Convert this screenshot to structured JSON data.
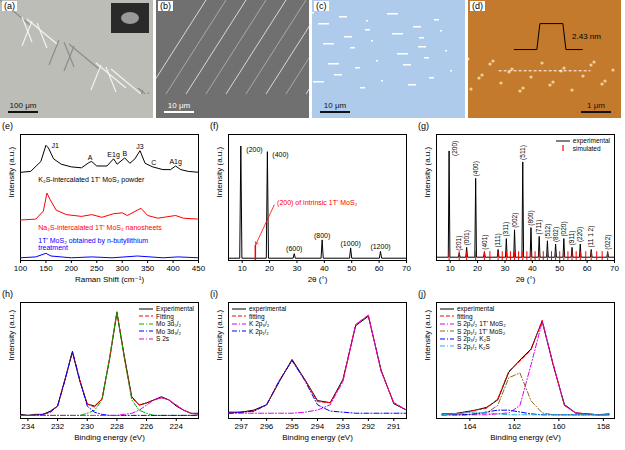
{
  "images": [
    {
      "panel": "(a)",
      "scale_bar": "100 μm"
    },
    {
      "panel": "(b)",
      "scale_bar": "10 μm"
    },
    {
      "panel": "(c)",
      "scale_bar": "10 μm"
    },
    {
      "panel": "(d)",
      "scale_bar": "1 μm",
      "profile_label": "2.43 nm"
    }
  ],
  "chart_data": [
    {
      "panel": "(e)",
      "type": "line",
      "xlabel": "Raman Shift (cm⁻¹)",
      "ylabel": "Intensity (a.u.)",
      "xlim": [
        100,
        450
      ],
      "xticks": [
        100,
        150,
        200,
        250,
        300,
        350,
        400,
        450
      ],
      "ylim": [
        0,
        14
      ],
      "tick_labels": "x",
      "series": [
        {
          "name": "K₂S-intercalated 1T' MoS₂ powder",
          "color": "#000000",
          "x": [
            100,
            120,
            140,
            150,
            155,
            165,
            180,
            200,
            220,
            235,
            240,
            250,
            270,
            283,
            290,
            305,
            315,
            325,
            335,
            345,
            360,
            380,
            395,
            405,
            415,
            430,
            450
          ],
          "values": [
            9.8,
            9.9,
            11.0,
            12.8,
            12.5,
            11.3,
            10.7,
            10.4,
            10.3,
            10.9,
            11.0,
            10.5,
            10.5,
            11.3,
            10.7,
            11.4,
            10.8,
            11.3,
            12.2,
            10.8,
            10.4,
            10.1,
            10.1,
            10.5,
            10.1,
            9.9,
            9.8
          ]
        },
        {
          "name": "Na₂S-intercalated 1T' MoS₂ nanosheets",
          "color": "#ff0000",
          "x": [
            100,
            130,
            145,
            152,
            158,
            170,
            190,
            220,
            240,
            260,
            283,
            300,
            310,
            330,
            337,
            350,
            370,
            405,
            420,
            450
          ],
          "values": [
            4.5,
            4.6,
            5.5,
            7.5,
            6.8,
            5.6,
            5.1,
            4.9,
            5.1,
            4.8,
            5.2,
            5.3,
            5.0,
            5.6,
            5.8,
            5.0,
            4.7,
            5.0,
            4.7,
            4.6
          ]
        },
        {
          "name": "1T' MoS₂ obtained by n-butyllithium treatment",
          "color": "#0000ff",
          "x": [
            100,
            130,
            150,
            160,
            200,
            240,
            280,
            330,
            380,
            410,
            450
          ],
          "values": [
            0.3,
            0.4,
            0.8,
            0.5,
            0.3,
            0.4,
            0.3,
            0.5,
            0.3,
            0.4,
            0.3
          ]
        }
      ],
      "annotations": [
        {
          "text": "J1",
          "x": 168,
          "y": 12.5
        },
        {
          "text": "A",
          "x": 237,
          "y": 11.2
        },
        {
          "text": "E1g",
          "x": 283,
          "y": 11.5
        },
        {
          "text": "B",
          "x": 305,
          "y": 11.6
        },
        {
          "text": "J3",
          "x": 335,
          "y": 12.4
        },
        {
          "text": "C",
          "x": 362,
          "y": 10.6
        },
        {
          "text": "A1g",
          "x": 405,
          "y": 10.7
        }
      ]
    },
    {
      "panel": "(f)",
      "type": "line",
      "xlabel": "2θ (°)",
      "ylabel": "Intensity (a.u.)",
      "xlim": [
        5,
        70
      ],
      "xticks": [
        10,
        20,
        30,
        40,
        50,
        60,
        70
      ],
      "ylim": [
        0,
        1.1
      ],
      "tick_labels": "x",
      "series": [
        {
          "color": "#000000",
          "x": [
            5,
            9.1,
            9.5,
            9.9,
            18.8,
            19.2,
            19.6,
            28.6,
            29.0,
            29.4,
            38.8,
            39.2,
            39.6,
            49.2,
            49.6,
            50.0,
            60.1,
            60.5,
            60.9,
            70
          ],
          "values": [
            0.02,
            0.02,
            1.0,
            0.02,
            0.02,
            0.95,
            0.02,
            0.02,
            0.06,
            0.02,
            0.02,
            0.18,
            0.02,
            0.02,
            0.11,
            0.02,
            0.02,
            0.08,
            0.02,
            0.02
          ]
        }
      ],
      "annotations": [
        {
          "text": "(200)",
          "x": 14.5,
          "y": 0.95
        },
        {
          "text": "(400)",
          "x": 24,
          "y": 0.9
        },
        {
          "text": "(600)",
          "x": 29,
          "y": 0.08
        },
        {
          "text": "(800)",
          "x": 39.2,
          "y": 0.2
        },
        {
          "text": "(1000)",
          "x": 49.6,
          "y": 0.13
        },
        {
          "text": "(1200)",
          "x": 60.5,
          "y": 0.1
        },
        {
          "text": "(200) of intrinsic 1T' MoS₂",
          "x": 22,
          "y": 0.5,
          "color": "#ff0000",
          "target_x": 14.8
        }
      ]
    },
    {
      "panel": "(g)",
      "type": "line",
      "xlabel": "2θ (°)",
      "ylabel": "Intensity (a.u.)",
      "xlim": [
        5,
        70
      ],
      "xticks": [
        10,
        20,
        30,
        40,
        50,
        60,
        70
      ],
      "ylim": [
        0,
        1.15
      ],
      "tick_labels": "x",
      "legend": "top-right",
      "series": [
        {
          "name": "experimental",
          "color": "#000000",
          "x": [
            5,
            9.3,
            9.6,
            9.9,
            13.0,
            13.3,
            13.6,
            15.7,
            16,
            16.3,
            19.0,
            19.3,
            19.6,
            22.2,
            22.5,
            22.8,
            27.2,
            27.5,
            27.8,
            30.2,
            30.5,
            30.8,
            33.2,
            33.5,
            33.8,
            36.2,
            36.5,
            36.8,
            39.2,
            39.5,
            39.8,
            42.2,
            42.5,
            42.8,
            45.2,
            45.5,
            45.8,
            48.2,
            48.5,
            48.8,
            51.2,
            51.5,
            51.8,
            54.2,
            54.5,
            54.8,
            57.2,
            57.5,
            57.8,
            61.2,
            61.5,
            61.8,
            67.2,
            67.5,
            67.8,
            70
          ],
          "values": [
            0.03,
            0.03,
            1.0,
            0.03,
            0.03,
            0.07,
            0.03,
            0.03,
            0.12,
            0.03,
            0.03,
            0.75,
            0.03,
            0.03,
            0.08,
            0.03,
            0.03,
            0.1,
            0.03,
            0.03,
            0.2,
            0.03,
            0.03,
            0.28,
            0.03,
            0.03,
            0.9,
            0.03,
            0.03,
            0.3,
            0.03,
            0.03,
            0.22,
            0.03,
            0.03,
            0.18,
            0.03,
            0.03,
            0.15,
            0.03,
            0.03,
            0.2,
            0.03,
            0.03,
            0.12,
            0.03,
            0.03,
            0.15,
            0.03,
            0.03,
            0.1,
            0.03,
            0.03,
            0.08,
            0.03,
            0.03
          ]
        },
        {
          "name": "simulated",
          "color": "#ff0000",
          "type": "tick",
          "x": [
            9.6,
            13.3,
            16,
            19.3,
            22.5,
            24.5,
            27.5,
            29,
            30.5,
            32,
            33.5,
            35,
            36.5,
            38,
            39.5,
            41,
            42.5,
            44,
            45.5,
            47,
            48.5,
            50,
            51.5,
            53,
            54.5,
            56,
            57.5,
            59.5,
            61.5,
            63.5,
            65.5,
            67.5
          ]
        }
      ],
      "peak_labels": [
        {
          "text": "(200)",
          "x": 9.6
        },
        {
          "text": "(201)",
          "x": 13.3
        },
        {
          "text": "(001)",
          "x": 16
        },
        {
          "text": "(400)",
          "x": 19.3
        },
        {
          "text": "(401)",
          "x": 22.5
        },
        {
          "text": "(111)",
          "x": 27.5
        },
        {
          "text": "(311)",
          "x": 30.5
        },
        {
          "text": "(002)",
          "x": 33.5
        },
        {
          "text": "(511)",
          "x": 36.5
        },
        {
          "text": "(800)",
          "x": 39.5
        },
        {
          "text": "(711)",
          "x": 42.5
        },
        {
          "text": "(512)",
          "x": 45.5
        },
        {
          "text": "(802)",
          "x": 48.5
        },
        {
          "text": "(020)",
          "x": 51.5
        },
        {
          "text": "(911)",
          "x": 54.5
        },
        {
          "text": "(220)",
          "x": 57.5
        },
        {
          "text": "(11 1 2)",
          "x": 61.5
        },
        {
          "text": "(022)",
          "x": 67.5
        }
      ]
    },
    {
      "panel": "(h)",
      "type": "line",
      "xlabel": "Binding energy (eV)",
      "ylabel": "Intensity (a.u.)",
      "xlim": [
        234.5,
        222.5
      ],
      "xticks": [
        234,
        232,
        230,
        228,
        226,
        224
      ],
      "ylim": [
        0,
        1.12
      ],
      "tick_labels": "x",
      "legend": "top-right",
      "x": [
        234.5,
        234,
        233.5,
        233,
        232.5,
        232,
        231.5,
        231,
        230.5,
        230,
        229.5,
        229,
        228.5,
        228,
        227.5,
        227,
        226.5,
        226,
        225.5,
        225,
        224.5,
        224,
        223.5,
        223,
        222.5
      ],
      "series": [
        {
          "name": "Experimental",
          "color": "#000000",
          "line_style": "solid",
          "values": [
            0.04,
            0.03,
            0.04,
            0.04,
            0.07,
            0.12,
            0.38,
            0.64,
            0.36,
            0.14,
            0.12,
            0.19,
            0.57,
            1.02,
            0.6,
            0.21,
            0.13,
            0.15,
            0.18,
            0.21,
            0.18,
            0.12,
            0.08,
            0.05,
            0.05
          ]
        },
        {
          "name": "Fitting",
          "color": "#ff0000",
          "line_style": "dashed",
          "values": [
            0.03,
            0.03,
            0.03,
            0.04,
            0.06,
            0.12,
            0.37,
            0.65,
            0.37,
            0.14,
            0.11,
            0.19,
            0.58,
            1.03,
            0.59,
            0.2,
            0.13,
            0.15,
            0.18,
            0.2,
            0.18,
            0.13,
            0.08,
            0.05,
            0.04
          ]
        },
        {
          "name": "Mo 3d₅/₂",
          "color": "#00b000",
          "line_style": "dashdot",
          "values": [
            0.03,
            0.03,
            0.03,
            0.03,
            0.03,
            0.03,
            0.03,
            0.03,
            0.03,
            0.05,
            0.08,
            0.18,
            0.58,
            1.03,
            0.58,
            0.18,
            0.08,
            0.05,
            0.03,
            0.03,
            0.03,
            0.03,
            0.03,
            0.03,
            0.03
          ]
        },
        {
          "name": "Mo 3d₃/₂",
          "color": "#0000ff",
          "line_style": "dashdot",
          "values": [
            0.03,
            0.03,
            0.03,
            0.04,
            0.06,
            0.12,
            0.37,
            0.65,
            0.37,
            0.12,
            0.06,
            0.04,
            0.03,
            0.03,
            0.03,
            0.03,
            0.03,
            0.03,
            0.03,
            0.03,
            0.03,
            0.03,
            0.03,
            0.03,
            0.03
          ]
        },
        {
          "name": "S 2s",
          "color": "#e000e0",
          "line_style": "dashdot",
          "values": [
            0.03,
            0.03,
            0.03,
            0.03,
            0.03,
            0.03,
            0.03,
            0.03,
            0.03,
            0.03,
            0.03,
            0.03,
            0.03,
            0.03,
            0.04,
            0.05,
            0.08,
            0.13,
            0.18,
            0.2,
            0.18,
            0.13,
            0.08,
            0.05,
            0.04
          ]
        }
      ]
    },
    {
      "panel": "(i)",
      "type": "line",
      "xlabel": "Binding energy (eV)",
      "ylabel": "Intensity (a.u.)",
      "xlim": [
        297.5,
        290.5
      ],
      "xticks": [
        297,
        296,
        295,
        294,
        293,
        292,
        291
      ],
      "ylim": [
        0,
        1.1
      ],
      "tick_labels": "x",
      "legend": "top-left",
      "x": [
        297.5,
        297,
        296.5,
        296,
        295.5,
        295,
        294.5,
        294,
        293.5,
        293,
        292.5,
        292,
        291.5,
        291,
        290.5
      ],
      "series": [
        {
          "name": "experimental",
          "color": "#000000",
          "line_style": "solid",
          "values": [
            0.06,
            0.06,
            0.08,
            0.13,
            0.35,
            0.56,
            0.37,
            0.17,
            0.15,
            0.37,
            0.88,
            0.97,
            0.46,
            0.14,
            0.08
          ]
        },
        {
          "name": "fitting",
          "color": "#ff0000",
          "line_style": "dashed",
          "values": [
            0.05,
            0.06,
            0.07,
            0.13,
            0.36,
            0.55,
            0.37,
            0.16,
            0.15,
            0.36,
            0.89,
            0.98,
            0.45,
            0.15,
            0.08
          ]
        },
        {
          "name": "K 2p₃/₂",
          "color": "#e000e0",
          "line_style": "dashdot",
          "values": [
            0.05,
            0.05,
            0.05,
            0.05,
            0.05,
            0.05,
            0.06,
            0.08,
            0.13,
            0.35,
            0.89,
            0.98,
            0.45,
            0.15,
            0.08
          ]
        },
        {
          "name": "K 2p₁/₂",
          "color": "#0000ff",
          "line_style": "dashdot",
          "values": [
            0.05,
            0.06,
            0.07,
            0.13,
            0.36,
            0.55,
            0.36,
            0.13,
            0.07,
            0.06,
            0.05,
            0.05,
            0.05,
            0.05,
            0.05
          ]
        }
      ]
    },
    {
      "panel": "(j)",
      "type": "line",
      "xlabel": "Binding energy (eV)",
      "ylabel": "Intensity (a.u.)",
      "xlim": [
        165.5,
        157.5
      ],
      "xticks": [
        164,
        162,
        160,
        158
      ],
      "ylim": [
        0,
        1.25
      ],
      "tick_labels": "x",
      "legend": "top-left",
      "x": [
        165.25,
        164.75,
        164.25,
        163.75,
        163.25,
        162.75,
        162.25,
        161.75,
        161.25,
        160.75,
        160.25,
        159.75,
        159.25,
        158.75,
        158.25,
        157.75
      ],
      "series": [
        {
          "name": "experimental",
          "color": "#000000",
          "line_style": "solid",
          "values": [
            0.05,
            0.05,
            0.07,
            0.09,
            0.12,
            0.2,
            0.5,
            0.63,
            0.75,
            1.05,
            0.57,
            0.15,
            0.06,
            0.05,
            0.04,
            0.05
          ]
        },
        {
          "name": "fitting",
          "color": "#ff0000",
          "line_style": "dashed",
          "values": [
            0.04,
            0.05,
            0.06,
            0.09,
            0.11,
            0.21,
            0.51,
            0.62,
            0.74,
            1.06,
            0.58,
            0.14,
            0.06,
            0.05,
            0.04,
            0.04
          ]
        },
        {
          "name": "S 2p₃/₂ 1T' MoS₂",
          "color": "#e000e0",
          "line_style": "dashdot",
          "values": [
            0.04,
            0.04,
            0.04,
            0.04,
            0.04,
            0.05,
            0.06,
            0.14,
            0.58,
            1.04,
            0.58,
            0.14,
            0.06,
            0.05,
            0.04,
            0.04
          ]
        },
        {
          "name": "S 2p₁/₂ 1T' MoS₂",
          "color": "#8b6914",
          "line_style": "dashdot",
          "values": [
            0.04,
            0.04,
            0.04,
            0.05,
            0.06,
            0.14,
            0.44,
            0.49,
            0.19,
            0.06,
            0.04,
            0.04,
            0.04,
            0.04,
            0.04,
            0.04
          ]
        },
        {
          "name": "S 2p₃/₂ K₂S",
          "color": "#0000ff",
          "line_style": "dashdot",
          "values": [
            0.04,
            0.04,
            0.04,
            0.05,
            0.07,
            0.09,
            0.09,
            0.07,
            0.05,
            0.04,
            0.04,
            0.04,
            0.04,
            0.04,
            0.04,
            0.04
          ]
        },
        {
          "name": "S 2p₁/₂ K₂S",
          "color": "#1fb5d5",
          "line_style": "dashdot",
          "values": [
            0.04,
            0.05,
            0.06,
            0.07,
            0.06,
            0.05,
            0.04,
            0.04,
            0.04,
            0.04,
            0.04,
            0.04,
            0.04,
            0.04,
            0.04,
            0.04
          ]
        }
      ]
    }
  ]
}
